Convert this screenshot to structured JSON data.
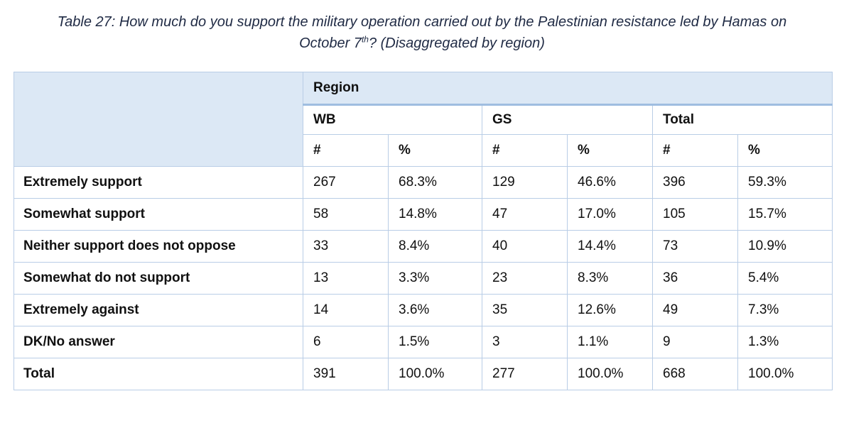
{
  "caption": {
    "line1": "Table 27: How much do you support the military operation carried out by the Palestinian resistance led by Hamas on",
    "line2_prefix": "October 7",
    "line2_sup": "th",
    "line2_suffix": "? (Disaggregated by region)"
  },
  "table": {
    "region_header": "Region",
    "groups": [
      "WB",
      "GS",
      "Total"
    ],
    "sub_headers": [
      "#",
      "%",
      "#",
      "%",
      "#",
      "%"
    ],
    "rows": [
      {
        "label": "Extremely support",
        "cells": [
          "267",
          "68.3%",
          "129",
          "46.6%",
          "396",
          "59.3%"
        ]
      },
      {
        "label": "Somewhat support",
        "cells": [
          "58",
          "14.8%",
          "47",
          "17.0%",
          "105",
          "15.7%"
        ]
      },
      {
        "label": "Neither support does not oppose",
        "cells": [
          "33",
          "8.4%",
          "40",
          "14.4%",
          "73",
          "10.9%"
        ]
      },
      {
        "label": "Somewhat do not support",
        "cells": [
          "13",
          "3.3%",
          "23",
          "8.3%",
          "36",
          "5.4%"
        ]
      },
      {
        "label": "Extremely against",
        "cells": [
          "14",
          "3.6%",
          "35",
          "12.6%",
          "49",
          "7.3%"
        ]
      },
      {
        "label": "DK/No answer",
        "cells": [
          "6",
          "1.5%",
          "3",
          "1.1%",
          "9",
          "1.3%"
        ]
      },
      {
        "label": "Total",
        "cells": [
          "391",
          "100.0%",
          "277",
          "100.0%",
          "668",
          "100.0%"
        ]
      }
    ]
  },
  "colors": {
    "header_fill": "#dce8f5",
    "border": "#b9cde6",
    "caption_text": "#1f2a44"
  }
}
